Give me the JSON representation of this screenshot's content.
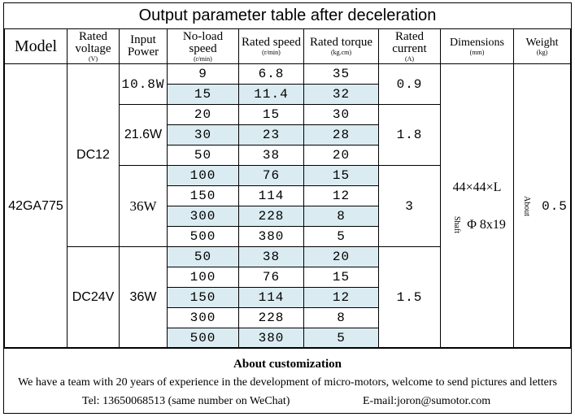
{
  "title": "Output parameter table after deceleration",
  "headers": {
    "model": "Model",
    "voltage": "Rated voltage",
    "voltage_unit": "(V)",
    "power": "Input Power",
    "noload": "No-load speed",
    "noload_unit": "(r/min)",
    "rated_speed": "Rated speed",
    "rated_speed_unit": "(r/min)",
    "torque": "Rated torque",
    "torque_unit": "(kg.cm)",
    "current": "Rated current",
    "current_unit": "(A)",
    "dimensions": "Dimensions",
    "dimensions_unit": "(mm)",
    "weight": "Weight",
    "weight_unit": "(kg)"
  },
  "model": "42GA775",
  "voltages": [
    "DC12",
    "DC24V"
  ],
  "powers": [
    "10.8W",
    "21.6W",
    "36W",
    "36W"
  ],
  "currents": [
    "0.9",
    "1.8",
    "3",
    "1.5"
  ],
  "dimensions": {
    "size": "44×44×L",
    "shaft_label": "Shaft",
    "shaft": "Φ 8x19"
  },
  "weight": {
    "prefix": "About",
    "value": "0.5"
  },
  "rows": [
    {
      "noload": "9",
      "speed": "6.8",
      "torque": "35"
    },
    {
      "noload": "15",
      "speed": "11.4",
      "torque": "32"
    },
    {
      "noload": "20",
      "speed": "15",
      "torque": "30"
    },
    {
      "noload": "30",
      "speed": "23",
      "torque": "28"
    },
    {
      "noload": "50",
      "speed": "38",
      "torque": "20"
    },
    {
      "noload": "100",
      "speed": "76",
      "torque": "15"
    },
    {
      "noload": "150",
      "speed": "114",
      "torque": "12"
    },
    {
      "noload": "300",
      "speed": "228",
      "torque": "8"
    },
    {
      "noload": "500",
      "speed": "380",
      "torque": "5"
    },
    {
      "noload": "50",
      "speed": "38",
      "torque": "20"
    },
    {
      "noload": "100",
      "speed": "76",
      "torque": "15"
    },
    {
      "noload": "150",
      "speed": "114",
      "torque": "12"
    },
    {
      "noload": "300",
      "speed": "228",
      "torque": "8"
    },
    {
      "noload": "500",
      "speed": "380",
      "torque": "5"
    }
  ],
  "footer": {
    "title": "About customization",
    "line": "We have a team with 20 years of experience in the development of micro-motors, welcome to send pictures and letters",
    "tel": "Tel: 13650068513 (same number on WeChat)",
    "email": "E-mail:joron@sumotor.com"
  },
  "colors": {
    "row_shade": "#daebf1"
  }
}
